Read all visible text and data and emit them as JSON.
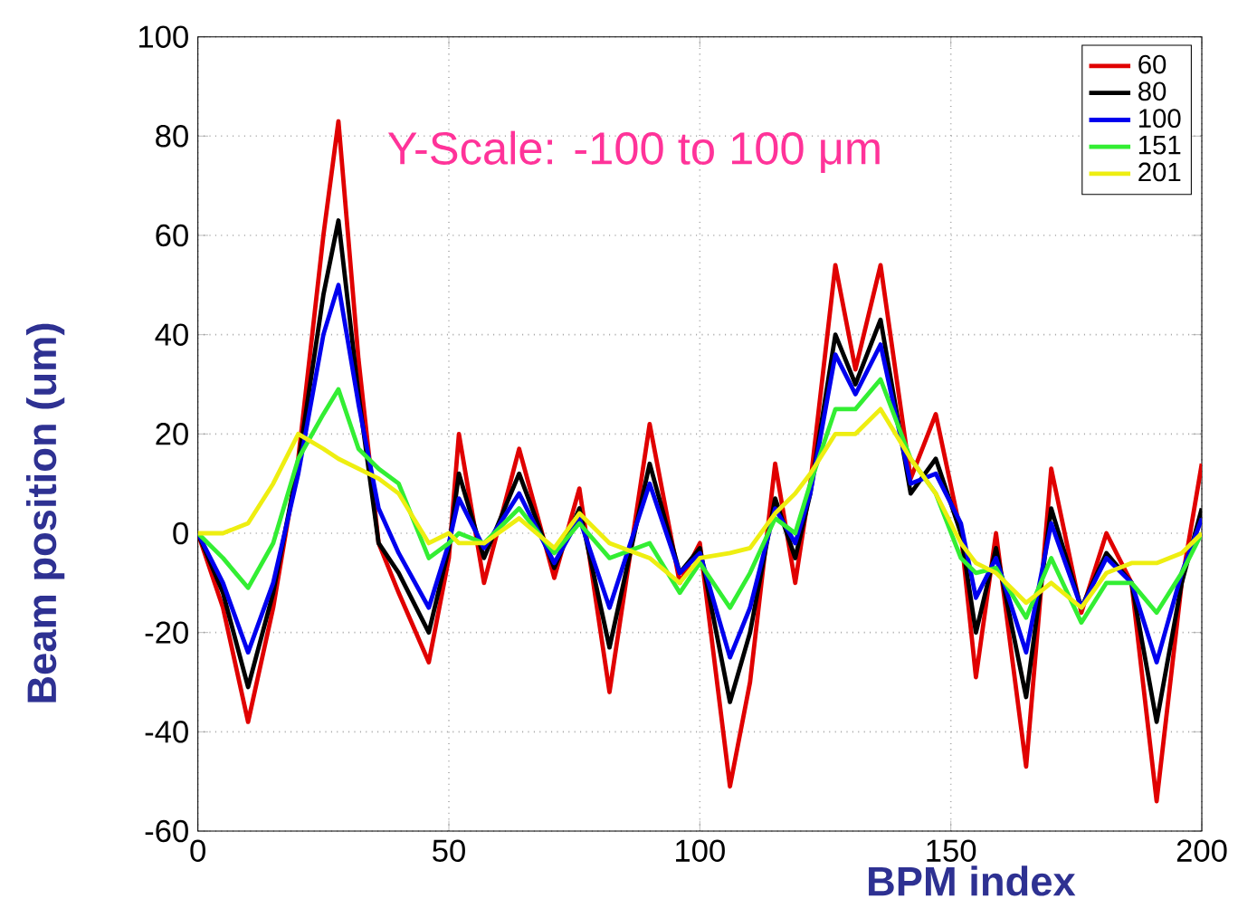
{
  "chart_data": {
    "type": "line",
    "xlabel": "BPM index",
    "ylabel": "Beam position (um)",
    "annotations": [
      "Y-Scale: -100 to 100 μm"
    ],
    "x": [
      0,
      5,
      10,
      15,
      20,
      25,
      28,
      32,
      36,
      40,
      46,
      50,
      52,
      57,
      64,
      71,
      76,
      82,
      90,
      96,
      100,
      106,
      110,
      115,
      119,
      122,
      127,
      131,
      136,
      142,
      147,
      152,
      155,
      159,
      165,
      170,
      176,
      181,
      186,
      191,
      196,
      200
    ],
    "series": [
      {
        "name": "60",
        "color": "#e00000",
        "values": [
          0,
          -15,
          -38,
          -15,
          15,
          60,
          83,
          35,
          -2,
          -12,
          -26,
          -5,
          20,
          -10,
          17,
          -9,
          9,
          -32,
          22,
          -10,
          -2,
          -51,
          -30,
          14,
          -10,
          10,
          54,
          33,
          54,
          11,
          24,
          0,
          -29,
          0,
          -47,
          13,
          -16,
          0,
          -10,
          -54,
          -10,
          14
        ]
      },
      {
        "name": "80",
        "color": "#000000",
        "values": [
          0,
          -12,
          -31,
          -12,
          14,
          48,
          63,
          28,
          -2,
          -8,
          -20,
          -3,
          12,
          -5,
          12,
          -7,
          5,
          -23,
          14,
          -8,
          -3,
          -34,
          -20,
          7,
          -5,
          8,
          40,
          30,
          43,
          8,
          15,
          0,
          -20,
          -3,
          -33,
          5,
          -15,
          -4,
          -10,
          -38,
          -10,
          5
        ]
      },
      {
        "name": "100",
        "color": "#0000ee",
        "values": [
          0,
          -10,
          -24,
          -10,
          12,
          40,
          50,
          26,
          5,
          -4,
          -15,
          -2,
          7,
          -3,
          8,
          -6,
          3,
          -15,
          10,
          -8,
          -4,
          -25,
          -15,
          5,
          -2,
          8,
          36,
          28,
          38,
          10,
          12,
          2,
          -13,
          -5,
          -24,
          2,
          -15,
          -5,
          -10,
          -26,
          -8,
          3
        ]
      },
      {
        "name": "151",
        "color": "#33ee33",
        "values": [
          0,
          -5,
          -11,
          -2,
          15,
          24,
          29,
          17,
          13,
          10,
          -5,
          -2,
          0,
          -2,
          5,
          -4,
          2,
          -5,
          -2,
          -12,
          -6,
          -15,
          -8,
          3,
          0,
          10,
          25,
          25,
          31,
          15,
          8,
          -5,
          -8,
          -7,
          -17,
          -5,
          -18,
          -10,
          -10,
          -16,
          -8,
          0
        ]
      },
      {
        "name": "201",
        "color": "#eeee11",
        "values": [
          0,
          0,
          2,
          10,
          20,
          17,
          15,
          13,
          11,
          8,
          -2,
          0,
          -2,
          -2,
          3,
          -3,
          4,
          -2,
          -5,
          -10,
          -5,
          -4,
          -3,
          4,
          8,
          12,
          20,
          20,
          25,
          15,
          8,
          -2,
          -6,
          -8,
          -14,
          -10,
          -15,
          -8,
          -6,
          -6,
          -4,
          0
        ]
      }
    ],
    "xlim": [
      0,
      200
    ],
    "ylim": [
      -60,
      100
    ],
    "xticks": [
      0,
      50,
      100,
      150,
      200
    ],
    "yticks": [
      -60,
      -40,
      -20,
      0,
      20,
      40,
      60,
      80,
      100
    ],
    "grid": true,
    "legend": "top right",
    "line_style": "solid"
  }
}
